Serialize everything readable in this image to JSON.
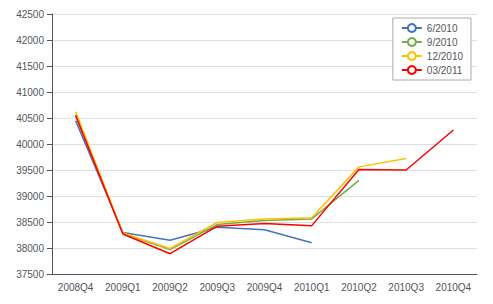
{
  "chart_data": {
    "type": "line",
    "categories": [
      "2008Q4",
      "2009Q1",
      "2009Q2",
      "2009Q3",
      "2009Q4",
      "2010Q1",
      "2010Q2",
      "2010Q3",
      "2010Q4"
    ],
    "series": [
      {
        "name": "6/2010",
        "color": "#4472c4",
        "values": [
          40450,
          38300,
          38150,
          38400,
          38350,
          38100,
          null,
          null,
          null
        ]
      },
      {
        "name": "9/2010",
        "color": "#70ad47",
        "values": [
          40550,
          38280,
          37970,
          38450,
          38530,
          38560,
          39300,
          null,
          null
        ]
      },
      {
        "name": "12/2010",
        "color": "#ffc000",
        "values": [
          40620,
          38290,
          37990,
          38490,
          38560,
          38580,
          39560,
          39720,
          null
        ]
      },
      {
        "name": "03/2011",
        "color": "#ff0000",
        "values": [
          40550,
          38270,
          37890,
          38420,
          38470,
          38430,
          39510,
          39500,
          40270
        ]
      }
    ],
    "ylim": [
      37500,
      42500
    ],
    "yticks": [
      37500,
      38000,
      38500,
      39000,
      39500,
      40000,
      40500,
      41000,
      41500,
      42000,
      42500
    ],
    "grid": true,
    "legend": "upper right"
  }
}
